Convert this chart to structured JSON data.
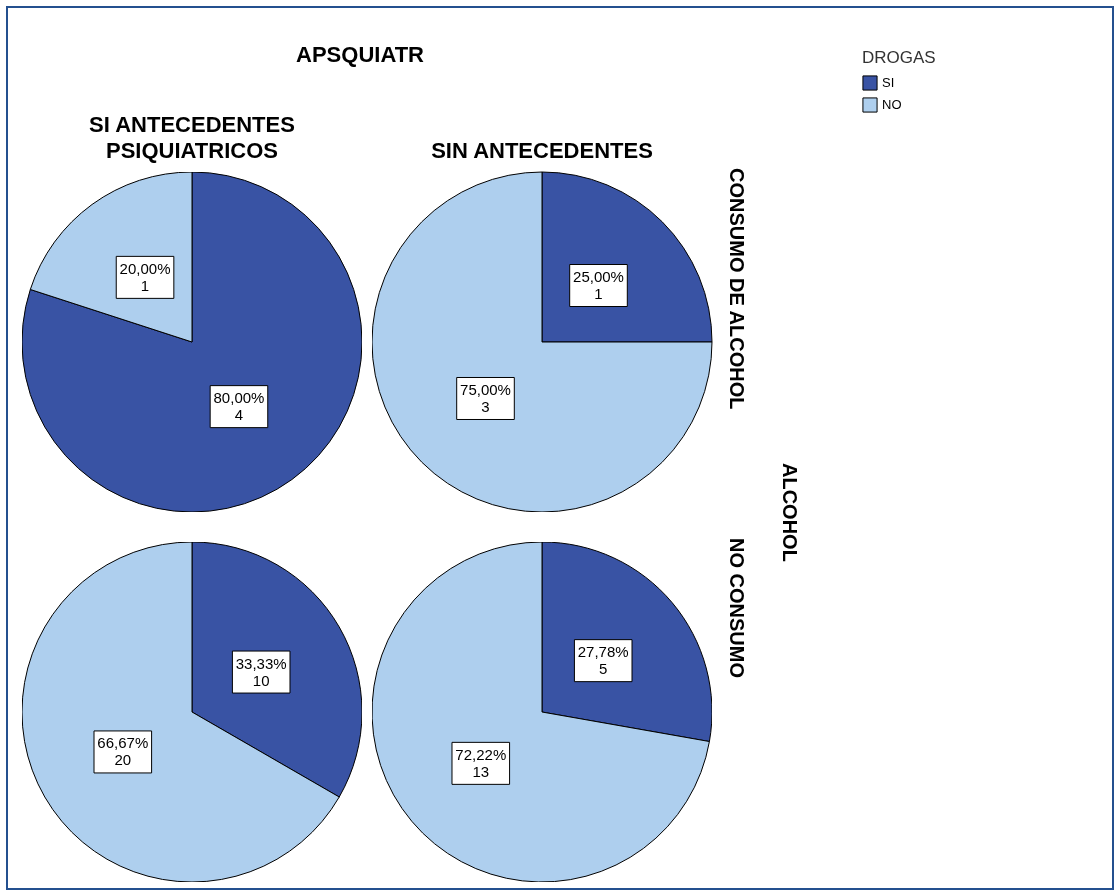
{
  "chart_data": [
    {
      "type": "pie",
      "title": "SI ANTECEDENTES PSIQUIATRICOS",
      "annotations": [
        "APSQUIATR"
      ],
      "categories": [
        null,
        null
      ],
      "values": [
        4,
        1
      ],
      "colors": [
        "#3953a4",
        "#aecfee"
      ],
      "value_labels": [
        "80,00%\n4",
        "20,00%\n1"
      ]
    },
    {
      "type": "pie",
      "title": "SIN ANTECEDENTES",
      "y2label": "CONSUMO DE ALCOHOL",
      "annotations": [
        "ALCOHOL"
      ],
      "legend_title": "DROGAS",
      "legend": "right",
      "categories": [
        "SI",
        "NO"
      ],
      "values": [
        1,
        3
      ],
      "colors": [
        "#3953a4",
        "#aecfee"
      ],
      "value_labels": [
        "25,00%\n1",
        "75,00%\n3"
      ]
    },
    {
      "type": "pie",
      "categories": [
        null,
        null
      ],
      "values": [
        10,
        20
      ],
      "colors": [
        "#3953a4",
        "#aecfee"
      ],
      "value_labels": [
        "33,33%\n10",
        "66,67%\n20"
      ]
    },
    {
      "type": "pie",
      "y2label": "NO CONSUMO",
      "categories": [
        null,
        null
      ],
      "values": [
        5,
        13
      ],
      "colors": [
        "#3953a4",
        "#aecfee"
      ],
      "value_labels": [
        "27,78%\n5",
        "72,22%\n13"
      ]
    }
  ]
}
